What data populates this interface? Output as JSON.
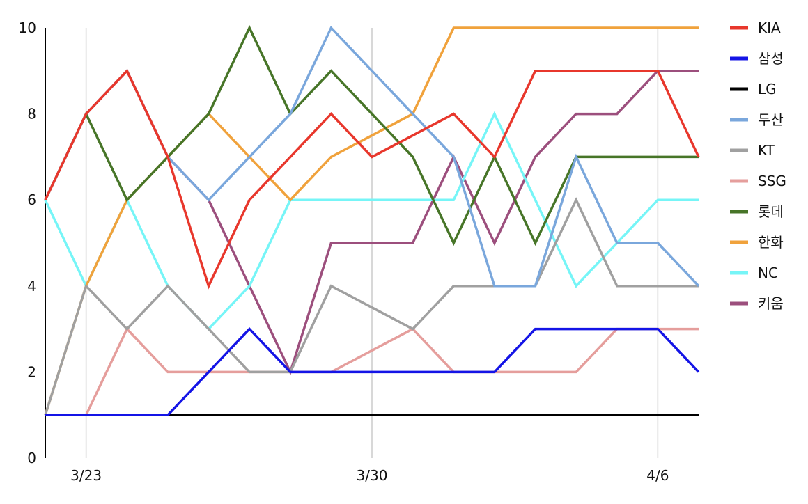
{
  "chart_data": {
    "type": "line",
    "x": [
      "3/22",
      "3/23",
      "3/24",
      "3/25",
      "3/26",
      "3/27",
      "3/28",
      "3/29",
      "3/30",
      "3/31",
      "4/1",
      "4/2",
      "4/3",
      "4/4",
      "4/5",
      "4/6",
      "4/7"
    ],
    "x_tick_labels": [
      {
        "x": "3/23",
        "label": "3/23"
      },
      {
        "x": "3/30",
        "label": "3/30"
      },
      {
        "x": "4/6",
        "label": "4/6"
      }
    ],
    "ylim": [
      0,
      10
    ],
    "yticks": [
      "0",
      "2",
      "4",
      "6",
      "8",
      "10"
    ],
    "grid": {
      "vertical": true,
      "horizontal": false
    },
    "legend_position": "right",
    "series": [
      {
        "name": "KIA",
        "color": "#e8372c",
        "values": [
          6,
          8,
          9,
          7,
          4,
          6,
          7,
          8,
          7,
          null,
          8,
          7,
          9,
          9,
          9,
          9,
          7
        ]
      },
      {
        "name": "삼성",
        "color": "#1414e6",
        "values": [
          1,
          1,
          null,
          1,
          2,
          3,
          2,
          2,
          2,
          null,
          2,
          2,
          3,
          3,
          3,
          3,
          2
        ]
      },
      {
        "name": "LG",
        "color": "#000000",
        "values": [
          1,
          1,
          null,
          1,
          1,
          1,
          1,
          1,
          1,
          null,
          1,
          1,
          1,
          1,
          1,
          1,
          1
        ]
      },
      {
        "name": "두산",
        "color": "#7aa7dc",
        "values": [
          6,
          8,
          9,
          7,
          6,
          7,
          8,
          10,
          null,
          8,
          7,
          4,
          4,
          7,
          5,
          5,
          4
        ]
      },
      {
        "name": "KT",
        "color": "#a0a0a0",
        "values": [
          1,
          4,
          3,
          4,
          3,
          2,
          2,
          4,
          null,
          3,
          4,
          4,
          4,
          6,
          4,
          4,
          4
        ]
      },
      {
        "name": "SSG",
        "color": "#e59e9c",
        "values": [
          1,
          1,
          3,
          2,
          2,
          2,
          2,
          2,
          null,
          3,
          2,
          2,
          2,
          2,
          3,
          3,
          3
        ]
      },
      {
        "name": "롯데",
        "color": "#477528",
        "values": [
          6,
          8,
          6,
          7,
          8,
          10,
          8,
          9,
          null,
          7,
          5,
          7,
          5,
          7,
          7,
          7,
          7
        ]
      },
      {
        "name": "한화",
        "color": "#f0a23c",
        "values": [
          1,
          4,
          6,
          7,
          8,
          7,
          6,
          7,
          null,
          8,
          10,
          10,
          10,
          10,
          10,
          10,
          10
        ]
      },
      {
        "name": "NC",
        "color": "#76f5f7",
        "values": [
          6,
          4,
          6,
          4,
          3,
          4,
          6,
          6,
          null,
          6,
          6,
          8,
          6,
          4,
          5,
          6,
          6
        ]
      },
      {
        "name": "키움",
        "color": "#9c4f7d",
        "values": [
          6,
          8,
          9,
          7,
          6,
          4,
          2,
          5,
          null,
          5,
          7,
          5,
          7,
          8,
          8,
          9,
          9
        ]
      }
    ]
  }
}
